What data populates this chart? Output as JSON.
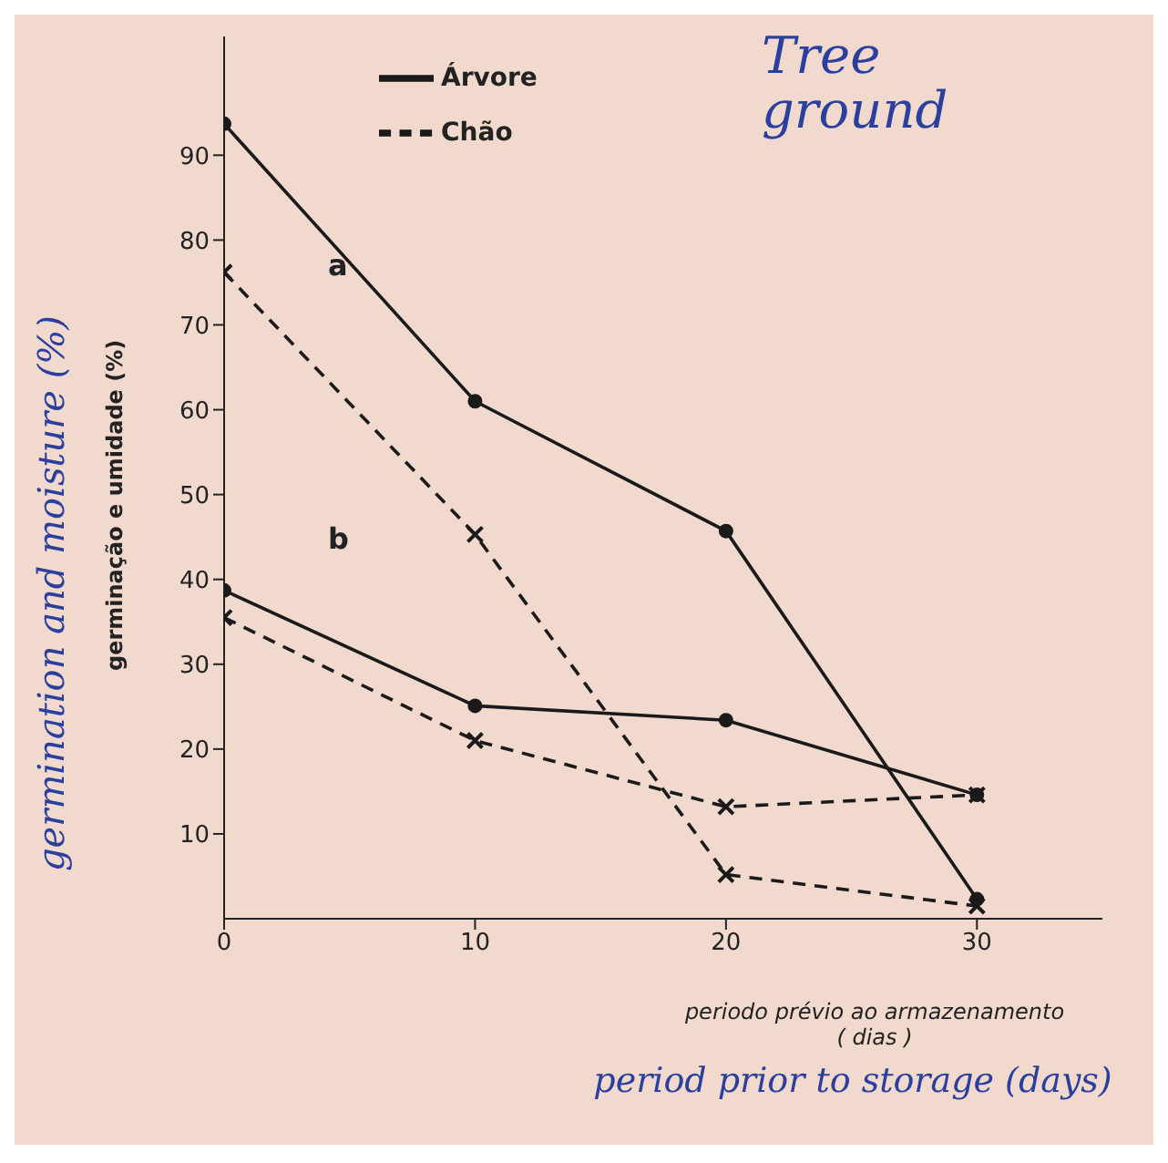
{
  "chart_data": {
    "type": "line",
    "xlabel": "periodo prévio ao armazenamento\n( dias )",
    "ylabel": "germinação e umidade (%)",
    "x": [
      0,
      10,
      20,
      30
    ],
    "series": [
      {
        "name": "Árvore",
        "color": "#1a1a1a",
        "values": [
          93.7,
          61,
          45.7,
          2.3
        ],
        "marker": "circle",
        "line_style": "solid"
      },
      {
        "name": "Chão",
        "color": "#1a1a1a",
        "values": [
          76.2,
          45.3,
          5.2,
          1.5
        ],
        "marker": "cross",
        "line_style": "dashed"
      },
      {
        "color": "#1a1a1a",
        "values": [
          38.7,
          25.1,
          23.4,
          14.6
        ],
        "marker": "circle",
        "line_style": "solid"
      },
      {
        "color": "#1a1a1a",
        "values": [
          35.5,
          21,
          13.2,
          14.6
        ],
        "marker": "cross",
        "line_style": "dashed"
      }
    ],
    "xlim": [
      0,
      35
    ],
    "xticks": [
      0,
      10,
      20,
      30
    ],
    "ylim": [
      0,
      104
    ],
    "yticks": [
      10,
      20,
      30,
      40,
      50,
      60,
      70,
      80,
      90
    ],
    "legend": "top",
    "grid": false,
    "annotations": [
      "a",
      "b",
      "Tree",
      "ground",
      "germination and moisture (%)",
      "period prior to storage (days)"
    ]
  }
}
